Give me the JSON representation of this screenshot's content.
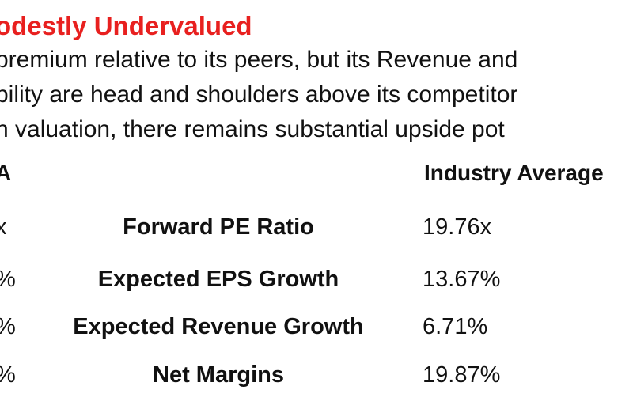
{
  "slide": {
    "title": "odestly Undervalued",
    "paragraph": [
      "premium relative to its peers, but its Revenue and",
      "bility are head and shoulders above its competitor",
      "n valuation, there remains substantial upside pot"
    ],
    "title_color": "#e8201f"
  },
  "table": {
    "header_left": "A",
    "header_right": "Industry Average",
    "rows": [
      {
        "left": "x",
        "metric": "Forward PE Ratio",
        "value": "19.76x"
      },
      {
        "left": "%",
        "metric": "Expected EPS Growth",
        "value": "13.67%"
      },
      {
        "left": "%",
        "metric": "Expected Revenue Growth",
        "value": "6.71%"
      },
      {
        "left": "%",
        "metric": "Net Margins",
        "value": "19.87%"
      }
    ]
  }
}
